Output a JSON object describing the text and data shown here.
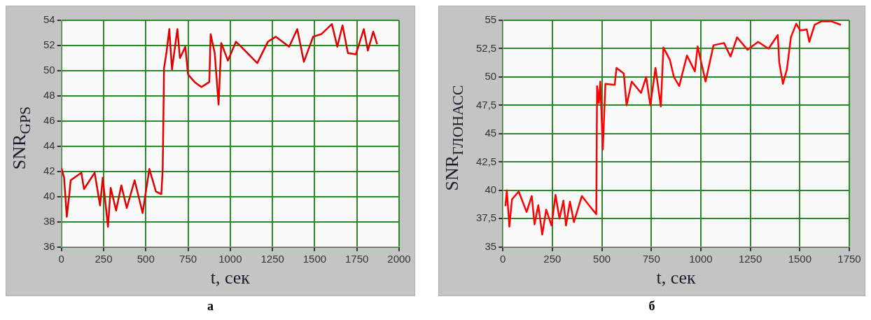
{
  "chart_data": [
    {
      "type": "line",
      "xlabel": "t, сек",
      "ylabel": "SNR$_{GPS}$",
      "annotations": [
        "а"
      ],
      "xlim": [
        0,
        2000
      ],
      "ylim": [
        36,
        54
      ],
      "xticks": [
        0,
        250,
        500,
        750,
        1000,
        1250,
        1500,
        1750,
        2000
      ],
      "yticks": [
        36,
        38,
        40,
        42,
        44,
        46,
        48,
        50,
        52,
        54
      ],
      "grid": true,
      "legend": false,
      "marker": "none",
      "line_style": "solid",
      "series": [
        {
          "color": "#e00000",
          "x": [
            0,
            16,
            32,
            47,
            55,
            118,
            134,
            197,
            229,
            245,
            276,
            292,
            324,
            355,
            387,
            434,
            481,
            521,
            560,
            592,
            600,
            608,
            623,
            639,
            655,
            687,
            702,
            734,
            750,
            789,
            829,
            876,
            884,
            908,
            931,
            947,
            986,
            1034,
            1065,
            1160,
            1223,
            1270,
            1349,
            1397,
            1436,
            1491,
            1539,
            1602,
            1634,
            1665,
            1697,
            1744,
            1791,
            1815,
            1847,
            1870
          ],
          "values": [
            42.3,
            41.5,
            38.4,
            40.2,
            41.3,
            41.9,
            40.6,
            41.9,
            39.3,
            41.5,
            37.6,
            40.7,
            38.9,
            40.9,
            39.1,
            41.3,
            38.7,
            42.2,
            40.4,
            40.2,
            42.2,
            50.2,
            51.5,
            53.3,
            50.1,
            53.3,
            51.0,
            51.9,
            49.7,
            49.1,
            48.7,
            49.1,
            52.9,
            51.4,
            47.3,
            52.2,
            50.8,
            52.3,
            51.9,
            50.6,
            52.3,
            52.7,
            51.9,
            53.3,
            50.7,
            52.7,
            52.9,
            53.7,
            51.9,
            53.6,
            51.4,
            51.3,
            53.3,
            51.6,
            53.1,
            52.1
          ]
        }
      ]
    },
    {
      "type": "line",
      "xlabel": "t, сек",
      "ylabel": "SNR$_{ГЛОНАСС}$",
      "annotations": [
        "б"
      ],
      "xlim": [
        0,
        1750
      ],
      "ylim": [
        35,
        55
      ],
      "xticks": [
        0,
        250,
        500,
        750,
        1000,
        1250,
        1500,
        1750
      ],
      "yticks": [
        35,
        {
          "value": 37.5,
          "label": "37,5"
        },
        40,
        {
          "value": 42.5,
          "label": "42,5"
        },
        45,
        {
          "value": 47.5,
          "label": "47,5"
        },
        50,
        {
          "value": 52.5,
          "label": "52,5"
        },
        55
      ],
      "grid": true,
      "legend": false,
      "marker": "none",
      "line_style": "solid",
      "series": [
        {
          "color": "#ff0000",
          "x": [
            13,
            20,
            33,
            46,
            80,
            120,
            146,
            160,
            179,
            199,
            219,
            246,
            266,
            286,
            306,
            319,
            339,
            359,
            399,
            439,
            472,
            476,
            485,
            492,
            505,
            518,
            565,
            574,
            611,
            625,
            651,
            698,
            724,
            745,
            771,
            798,
            811,
            844,
            864,
            891,
            930,
            970,
            984,
            1024,
            1064,
            1117,
            1150,
            1183,
            1236,
            1289,
            1342,
            1389,
            1396,
            1415,
            1435,
            1455,
            1482,
            1502,
            1535,
            1548,
            1575,
            1608,
            1661,
            1708
          ],
          "values": [
            38.6,
            40.0,
            36.8,
            39.2,
            39.9,
            38.1,
            39.5,
            37.0,
            38.7,
            36.1,
            38.3,
            36.9,
            39.6,
            37.5,
            39.1,
            36.9,
            39.0,
            37.2,
            39.5,
            38.6,
            37.9,
            49.2,
            47.7,
            49.6,
            43.6,
            49.4,
            49.3,
            50.8,
            50.3,
            47.5,
            49.6,
            48.6,
            50.0,
            47.5,
            50.8,
            47.4,
            52.6,
            51.5,
            50.0,
            49.2,
            51.9,
            50.5,
            52.7,
            49.6,
            52.8,
            53.0,
            51.8,
            53.5,
            52.4,
            53.1,
            52.5,
            53.7,
            51.3,
            49.4,
            50.7,
            53.5,
            54.7,
            54.1,
            54.2,
            53.1,
            54.6,
            54.9,
            54.9,
            54.6
          ]
        }
      ]
    }
  ]
}
